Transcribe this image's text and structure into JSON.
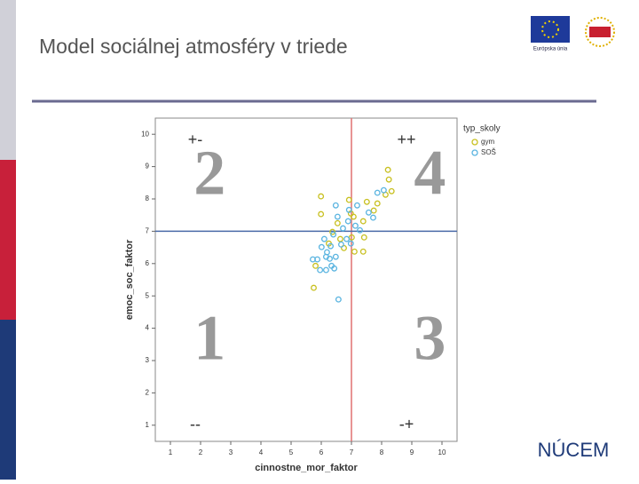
{
  "slide": {
    "title": "Model sociálnej atmosféry v triede",
    "logo_eu": "Európska únia",
    "logo_nucem": "NÚCEM"
  },
  "chart_data": {
    "type": "scatter",
    "x_label": "cinnostne_mor_faktor",
    "y_label": "emoc_soc_faktor",
    "xlim": [
      0.5,
      10.5
    ],
    "ylim": [
      0.5,
      10.5
    ],
    "xticks": [
      1,
      2,
      3,
      4,
      5,
      6,
      7,
      8,
      9,
      10
    ],
    "yticks": [
      1,
      2,
      3,
      4,
      5,
      6,
      7,
      8,
      9,
      10
    ],
    "legend_title": "typ_skoly",
    "legend": "right outside",
    "reference_lines": [
      {
        "axis": "x",
        "value": 7,
        "color": "#e07070"
      },
      {
        "axis": "y",
        "value": 7,
        "color": "#4a6aa8"
      }
    ],
    "quadrant_signs": [
      "+-",
      "++",
      "--",
      "-+"
    ],
    "quadrant_numbers": [
      "2",
      "4",
      "1",
      "3"
    ],
    "series": [
      {
        "name": "gym",
        "color": "#c8c020",
        "x": [
          8.21,
          8.24,
          8.33,
          8.13,
          7.86,
          7.74,
          5.99,
          5.99,
          6.92,
          6.98,
          7.39,
          7.42,
          7.01,
          7.1,
          7.39,
          5.81,
          5.75,
          6.54,
          6.63,
          6.75,
          7.51,
          7.07,
          6.25,
          6.37
        ],
        "values": [
          8.9,
          8.6,
          8.24,
          8.13,
          7.86,
          7.64,
          8.08,
          7.53,
          7.97,
          7.55,
          7.31,
          6.81,
          6.81,
          6.37,
          6.37,
          5.93,
          5.25,
          7.25,
          6.76,
          6.48,
          7.91,
          7.45,
          6.62,
          6.98
        ]
      },
      {
        "name": "SOŠ",
        "color": "#5ab4e0",
        "x": [
          6.57,
          5.72,
          5.87,
          5.96,
          6.16,
          6.34,
          6.48,
          6.19,
          6.31,
          6.1,
          6.4,
          6.72,
          6.89,
          7.13,
          7.28,
          6.54,
          6.48,
          6.92,
          7.19,
          7.57,
          7.72,
          8.07,
          7.86,
          6.84,
          6.66,
          6.98,
          6.28,
          6.43,
          6.16,
          6.01
        ],
        "values": [
          4.89,
          6.13,
          6.13,
          5.8,
          5.8,
          5.93,
          6.21,
          6.35,
          6.54,
          6.76,
          6.9,
          7.09,
          7.31,
          7.17,
          7.03,
          7.45,
          7.8,
          7.66,
          7.8,
          7.58,
          7.42,
          8.27,
          8.19,
          6.76,
          6.59,
          6.62,
          6.15,
          5.85,
          6.21,
          6.51
        ]
      }
    ]
  }
}
